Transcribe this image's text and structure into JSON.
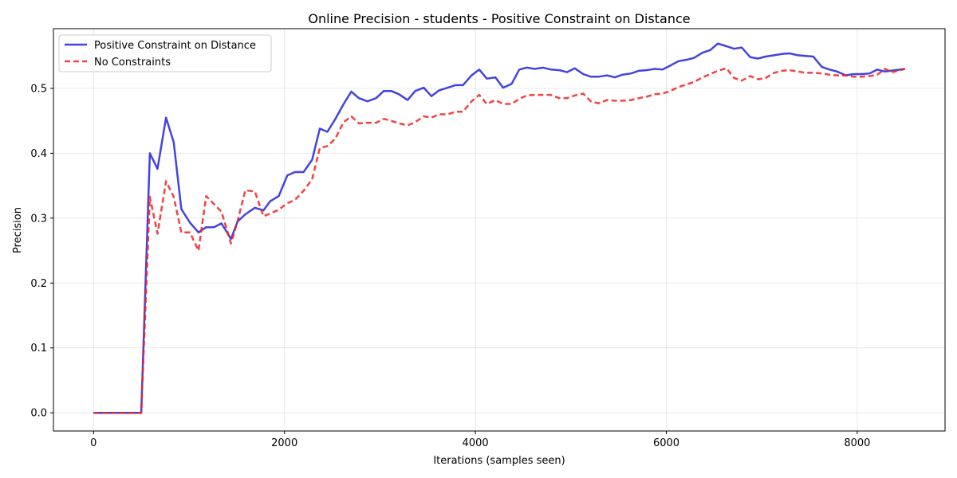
{
  "chart_data": {
    "type": "line",
    "title": "Online Precision - students - Positive Constraint on Distance",
    "xlabel": "Iterations (samples seen)",
    "ylabel": "Precision",
    "xlim": [
      -420,
      8920
    ],
    "ylim": [
      -0.028,
      0.592
    ],
    "x_ticks": [
      0,
      2000,
      4000,
      6000,
      8000
    ],
    "y_ticks": [
      0.0,
      0.1,
      0.2,
      0.3,
      0.4,
      0.5
    ],
    "x_tick_labels": [
      "0",
      "2000",
      "4000",
      "6000",
      "8000"
    ],
    "y_tick_labels": [
      "0.0",
      "0.1",
      "0.2",
      "0.3",
      "0.4",
      "0.5"
    ],
    "grid": true,
    "legend_position": "upper-left",
    "series": [
      {
        "name": "Positive Constraint on Distance",
        "color": "#2222dd",
        "style": "solid",
        "points": [
          [
            0,
            0
          ],
          [
            100,
            0
          ],
          [
            200,
            0
          ],
          [
            300,
            0
          ],
          [
            400,
            0
          ],
          [
            500,
            0
          ],
          [
            590,
            0.4
          ],
          [
            670,
            0.376
          ],
          [
            760,
            0.455
          ],
          [
            840,
            0.417
          ],
          [
            920,
            0.314
          ],
          [
            1010,
            0.293
          ],
          [
            1100,
            0.278
          ],
          [
            1180,
            0.286
          ],
          [
            1260,
            0.286
          ],
          [
            1340,
            0.292
          ],
          [
            1440,
            0.268
          ],
          [
            1510,
            0.295
          ],
          [
            1590,
            0.306
          ],
          [
            1690,
            0.316
          ],
          [
            1780,
            0.312
          ],
          [
            1850,
            0.326
          ],
          [
            1940,
            0.334
          ],
          [
            2030,
            0.366
          ],
          [
            2110,
            0.371
          ],
          [
            2200,
            0.371
          ],
          [
            2290,
            0.39
          ],
          [
            2370,
            0.438
          ],
          [
            2450,
            0.433
          ],
          [
            2530,
            0.452
          ],
          [
            2620,
            0.476
          ],
          [
            2700,
            0.495
          ],
          [
            2780,
            0.485
          ],
          [
            2870,
            0.48
          ],
          [
            2960,
            0.485
          ],
          [
            3040,
            0.496
          ],
          [
            3120,
            0.496
          ],
          [
            3200,
            0.491
          ],
          [
            3290,
            0.482
          ],
          [
            3370,
            0.496
          ],
          [
            3460,
            0.501
          ],
          [
            3540,
            0.488
          ],
          [
            3620,
            0.497
          ],
          [
            3710,
            0.501
          ],
          [
            3790,
            0.505
          ],
          [
            3870,
            0.505
          ],
          [
            3960,
            0.52
          ],
          [
            4040,
            0.529
          ],
          [
            4120,
            0.515
          ],
          [
            4210,
            0.517
          ],
          [
            4290,
            0.501
          ],
          [
            4380,
            0.507
          ],
          [
            4460,
            0.529
          ],
          [
            4540,
            0.532
          ],
          [
            4620,
            0.53
          ],
          [
            4710,
            0.532
          ],
          [
            4790,
            0.529
          ],
          [
            4880,
            0.528
          ],
          [
            4960,
            0.525
          ],
          [
            5040,
            0.531
          ],
          [
            5130,
            0.522
          ],
          [
            5210,
            0.518
          ],
          [
            5290,
            0.518
          ],
          [
            5380,
            0.52
          ],
          [
            5460,
            0.517
          ],
          [
            5540,
            0.521
          ],
          [
            5630,
            0.523
          ],
          [
            5710,
            0.527
          ],
          [
            5790,
            0.528
          ],
          [
            5880,
            0.53
          ],
          [
            5960,
            0.529
          ],
          [
            6040,
            0.535
          ],
          [
            6130,
            0.542
          ],
          [
            6210,
            0.544
          ],
          [
            6290,
            0.547
          ],
          [
            6380,
            0.555
          ],
          [
            6460,
            0.559
          ],
          [
            6540,
            0.569
          ],
          [
            6630,
            0.565
          ],
          [
            6710,
            0.561
          ],
          [
            6790,
            0.563
          ],
          [
            6880,
            0.548
          ],
          [
            6960,
            0.546
          ],
          [
            7040,
            0.549
          ],
          [
            7130,
            0.551
          ],
          [
            7210,
            0.553
          ],
          [
            7290,
            0.554
          ],
          [
            7380,
            0.551
          ],
          [
            7460,
            0.55
          ],
          [
            7540,
            0.549
          ],
          [
            7630,
            0.533
          ],
          [
            7710,
            0.529
          ],
          [
            7790,
            0.526
          ],
          [
            7880,
            0.52
          ],
          [
            7960,
            0.522
          ],
          [
            8040,
            0.522
          ],
          [
            8130,
            0.523
          ],
          [
            8210,
            0.529
          ],
          [
            8290,
            0.526
          ],
          [
            8500,
            0.53
          ]
        ]
      },
      {
        "name": "No Constraints",
        "color": "#ee2222",
        "style": "dashed",
        "points": [
          [
            0,
            0
          ],
          [
            100,
            0
          ],
          [
            200,
            0
          ],
          [
            300,
            0
          ],
          [
            400,
            0
          ],
          [
            500,
            0
          ],
          [
            590,
            0.333
          ],
          [
            670,
            0.276
          ],
          [
            760,
            0.357
          ],
          [
            840,
            0.333
          ],
          [
            920,
            0.278
          ],
          [
            1010,
            0.278
          ],
          [
            1100,
            0.25
          ],
          [
            1180,
            0.334
          ],
          [
            1260,
            0.322
          ],
          [
            1340,
            0.31
          ],
          [
            1440,
            0.261
          ],
          [
            1510,
            0.296
          ],
          [
            1590,
            0.343
          ],
          [
            1690,
            0.341
          ],
          [
            1780,
            0.303
          ],
          [
            1850,
            0.307
          ],
          [
            1940,
            0.313
          ],
          [
            2030,
            0.323
          ],
          [
            2110,
            0.328
          ],
          [
            2200,
            0.342
          ],
          [
            2290,
            0.36
          ],
          [
            2370,
            0.408
          ],
          [
            2450,
            0.411
          ],
          [
            2530,
            0.422
          ],
          [
            2620,
            0.448
          ],
          [
            2700,
            0.457
          ],
          [
            2780,
            0.446
          ],
          [
            2870,
            0.447
          ],
          [
            2960,
            0.447
          ],
          [
            3040,
            0.453
          ],
          [
            3120,
            0.45
          ],
          [
            3200,
            0.446
          ],
          [
            3290,
            0.443
          ],
          [
            3370,
            0.448
          ],
          [
            3460,
            0.457
          ],
          [
            3540,
            0.455
          ],
          [
            3620,
            0.46
          ],
          [
            3710,
            0.46
          ],
          [
            3790,
            0.464
          ],
          [
            3870,
            0.464
          ],
          [
            3960,
            0.48
          ],
          [
            4040,
            0.49
          ],
          [
            4120,
            0.476
          ],
          [
            4210,
            0.482
          ],
          [
            4290,
            0.476
          ],
          [
            4380,
            0.476
          ],
          [
            4460,
            0.484
          ],
          [
            4540,
            0.489
          ],
          [
            4620,
            0.49
          ],
          [
            4710,
            0.49
          ],
          [
            4790,
            0.49
          ],
          [
            4880,
            0.485
          ],
          [
            4960,
            0.485
          ],
          [
            5040,
            0.489
          ],
          [
            5130,
            0.492
          ],
          [
            5210,
            0.48
          ],
          [
            5290,
            0.477
          ],
          [
            5380,
            0.482
          ],
          [
            5460,
            0.481
          ],
          [
            5540,
            0.481
          ],
          [
            5630,
            0.482
          ],
          [
            5710,
            0.485
          ],
          [
            5790,
            0.487
          ],
          [
            5880,
            0.491
          ],
          [
            5960,
            0.492
          ],
          [
            6040,
            0.496
          ],
          [
            6130,
            0.502
          ],
          [
            6210,
            0.506
          ],
          [
            6290,
            0.51
          ],
          [
            6380,
            0.517
          ],
          [
            6460,
            0.522
          ],
          [
            6540,
            0.527
          ],
          [
            6630,
            0.531
          ],
          [
            6710,
            0.516
          ],
          [
            6790,
            0.512
          ],
          [
            6880,
            0.519
          ],
          [
            6960,
            0.514
          ],
          [
            7040,
            0.516
          ],
          [
            7130,
            0.524
          ],
          [
            7210,
            0.527
          ],
          [
            7290,
            0.528
          ],
          [
            7380,
            0.526
          ],
          [
            7460,
            0.524
          ],
          [
            7540,
            0.524
          ],
          [
            7630,
            0.523
          ],
          [
            7710,
            0.521
          ],
          [
            7790,
            0.52
          ],
          [
            7880,
            0.52
          ],
          [
            7960,
            0.518
          ],
          [
            8040,
            0.518
          ],
          [
            8130,
            0.519
          ],
          [
            8210,
            0.521
          ],
          [
            8290,
            0.53
          ],
          [
            8370,
            0.525
          ],
          [
            8500,
            0.53
          ]
        ]
      }
    ]
  }
}
